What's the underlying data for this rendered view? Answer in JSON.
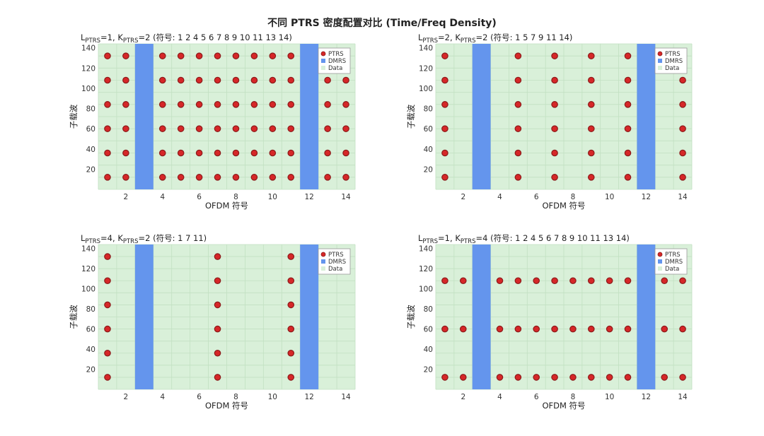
{
  "figure": {
    "suptitle": "不同 PTRS 密度配置对比 (Time/Freq Density)"
  },
  "colors": {
    "background": "#d9f0d9",
    "grid": "#c2e0c2",
    "ptrs_fill": "#d62728",
    "ptrs_edge": "#8b1a1a",
    "dmrs": "#6495ed",
    "data_legend": "#d9f0d9"
  },
  "chart_data": [
    {
      "type": "scatter",
      "title_parts": {
        "L": "L",
        "L_sub": "PTRS",
        "L_val": "=1,  ",
        "K": "K",
        "K_sub": "PTRS",
        "K_val": "=2",
        "symbols": "   (符号:  1    2    4    5    6    7    8    9   10   11   13   14)"
      },
      "xlabel": "OFDM 符号",
      "ylabel": "子载波",
      "xlim": [
        0.5,
        14.5
      ],
      "ylim": [
        0,
        144
      ],
      "xticks": [
        2,
        4,
        6,
        8,
        10,
        12,
        14
      ],
      "yticks": [
        20,
        40,
        60,
        80,
        100,
        120,
        140
      ],
      "dmrs_symbols": [
        3,
        12
      ],
      "ptrs_symbols": [
        1,
        2,
        4,
        5,
        6,
        7,
        8,
        9,
        10,
        11,
        13,
        14
      ],
      "ptrs_subcarriers": [
        12,
        36,
        60,
        84,
        108,
        132
      ],
      "legend": [
        "PTRS",
        "DMRS",
        "Data"
      ],
      "legend_position": "top-right"
    },
    {
      "type": "scatter",
      "title_parts": {
        "L": "L",
        "L_sub": "PTRS",
        "L_val": "=2,  ",
        "K": "K",
        "K_sub": "PTRS",
        "K_val": "=2",
        "symbols": "   (符号:  1     5     7     9    11    14)"
      },
      "xlabel": "OFDM 符号",
      "ylabel": "子载波",
      "xlim": [
        0.5,
        14.5
      ],
      "ylim": [
        0,
        144
      ],
      "xticks": [
        2,
        4,
        6,
        8,
        10,
        12,
        14
      ],
      "yticks": [
        20,
        40,
        60,
        80,
        100,
        120,
        140
      ],
      "dmrs_symbols": [
        3,
        12
      ],
      "ptrs_symbols": [
        1,
        5,
        7,
        9,
        11,
        14
      ],
      "ptrs_subcarriers": [
        12,
        36,
        60,
        84,
        108,
        132
      ],
      "legend": [
        "PTRS",
        "DMRS",
        "Data"
      ],
      "legend_position": "top-right"
    },
    {
      "type": "scatter",
      "title_parts": {
        "L": "L",
        "L_sub": "PTRS",
        "L_val": "=4,  ",
        "K": "K",
        "K_sub": "PTRS",
        "K_val": "=2",
        "symbols": "   (符号:  1     7    11)"
      },
      "xlabel": "OFDM 符号",
      "ylabel": "子载波",
      "xlim": [
        0.5,
        14.5
      ],
      "ylim": [
        0,
        144
      ],
      "xticks": [
        2,
        4,
        6,
        8,
        10,
        12,
        14
      ],
      "yticks": [
        20,
        40,
        60,
        80,
        100,
        120,
        140
      ],
      "dmrs_symbols": [
        3,
        12
      ],
      "ptrs_symbols": [
        1,
        7,
        11
      ],
      "ptrs_subcarriers": [
        12,
        36,
        60,
        84,
        108,
        132
      ],
      "legend": [
        "PTRS",
        "DMRS",
        "Data"
      ],
      "legend_position": "top-right"
    },
    {
      "type": "scatter",
      "title_parts": {
        "L": "L",
        "L_sub": "PTRS",
        "L_val": "=1,  ",
        "K": "K",
        "K_sub": "PTRS",
        "K_val": "=4",
        "symbols": "   (符号:  1    2    4    5    6    7    8    9   10   11   13   14)"
      },
      "xlabel": "OFDM 符号",
      "ylabel": "子载波",
      "xlim": [
        0.5,
        14.5
      ],
      "ylim": [
        0,
        144
      ],
      "xticks": [
        2,
        4,
        6,
        8,
        10,
        12,
        14
      ],
      "yticks": [
        20,
        40,
        60,
        80,
        100,
        120,
        140
      ],
      "dmrs_symbols": [
        3,
        12
      ],
      "ptrs_symbols": [
        1,
        2,
        4,
        5,
        6,
        7,
        8,
        9,
        10,
        11,
        13,
        14
      ],
      "ptrs_subcarriers": [
        12,
        60,
        108
      ],
      "legend": [
        "PTRS",
        "DMRS",
        "Data"
      ],
      "legend_position": "top-right"
    }
  ]
}
